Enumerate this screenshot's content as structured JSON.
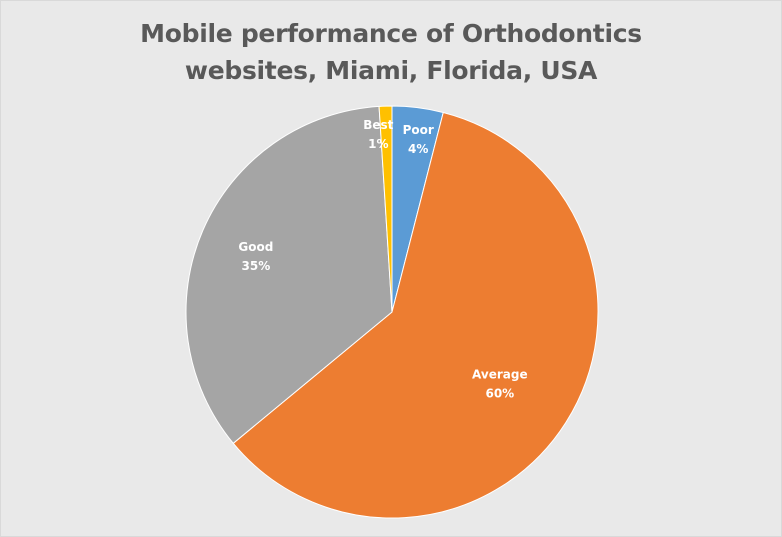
{
  "chart_data": {
    "type": "pie",
    "title_lines": [
      "Mobile performance of Orthodontics",
      "websites, Miami, Florida, USA"
    ],
    "title": "Mobile performance of Orthodontics websites, Miami, Florida, USA",
    "slices": [
      {
        "name": "Poor",
        "value": 4,
        "label": "4%",
        "color": "#5b9bd5"
      },
      {
        "name": "Average",
        "value": 60,
        "label": "60%",
        "color": "#ed7d31"
      },
      {
        "name": "Good",
        "value": 35,
        "label": "35%",
        "color": "#a5a5a5"
      },
      {
        "name": "Best",
        "value": 1,
        "label": "1%",
        "color": "#ffc000"
      }
    ]
  }
}
